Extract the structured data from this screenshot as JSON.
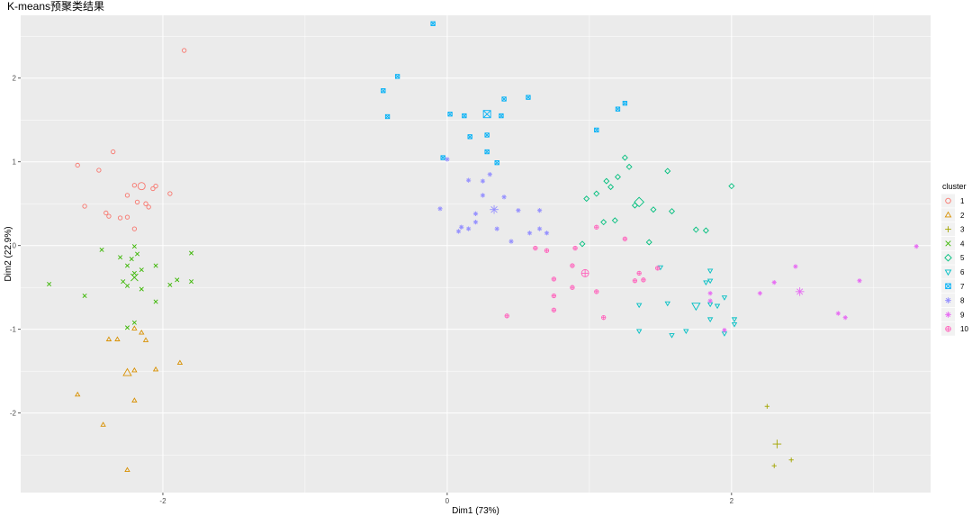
{
  "chart_data": {
    "type": "scatter",
    "title": "K-means预聚类结果",
    "xlabel": "Dim1 (73%)",
    "ylabel": "Dim2 (22.9%)",
    "xlim": [
      -3.0,
      3.4
    ],
    "ylim": [
      -2.95,
      2.75
    ],
    "x_ticks": [
      -2,
      0,
      2
    ],
    "y_ticks": [
      -2,
      -1,
      0,
      1,
      2
    ],
    "grid": true,
    "legend": {
      "title": "cluster",
      "position": "right"
    },
    "series": [
      {
        "name": "1",
        "color": "#F8766D",
        "shape": "circle",
        "centroid": [
          -2.15,
          0.71
        ],
        "points": [
          [
            -1.85,
            2.33
          ],
          [
            -2.6,
            0.96
          ],
          [
            -2.35,
            1.12
          ],
          [
            -2.45,
            0.9
          ],
          [
            -2.2,
            0.72
          ],
          [
            -2.05,
            0.71
          ],
          [
            -2.07,
            0.68
          ],
          [
            -1.95,
            0.62
          ],
          [
            -2.25,
            0.6
          ],
          [
            -2.18,
            0.52
          ],
          [
            -2.12,
            0.5
          ],
          [
            -2.1,
            0.46
          ],
          [
            -2.55,
            0.47
          ],
          [
            -2.4,
            0.39
          ],
          [
            -2.38,
            0.35
          ],
          [
            -2.3,
            0.33
          ],
          [
            -2.25,
            0.34
          ],
          [
            -2.2,
            0.2
          ]
        ]
      },
      {
        "name": "2",
        "color": "#D89000",
        "shape": "triangle",
        "centroid": [
          -2.25,
          -1.52
        ],
        "points": [
          [
            -2.2,
            -0.99
          ],
          [
            -2.15,
            -1.04
          ],
          [
            -2.38,
            -1.12
          ],
          [
            -2.32,
            -1.12
          ],
          [
            -2.12,
            -1.13
          ],
          [
            -2.05,
            -1.48
          ],
          [
            -2.2,
            -1.49
          ],
          [
            -1.88,
            -1.4
          ],
          [
            -2.2,
            -1.85
          ],
          [
            -2.6,
            -1.78
          ],
          [
            -2.42,
            -2.14
          ],
          [
            -2.25,
            -2.68
          ]
        ]
      },
      {
        "name": "3",
        "color": "#A3A500",
        "shape": "plus",
        "centroid": [
          2.32,
          -2.37
        ],
        "points": [
          [
            2.25,
            -1.92
          ],
          [
            2.42,
            -2.56
          ],
          [
            2.3,
            -2.63
          ]
        ]
      },
      {
        "name": "4",
        "color": "#39B600",
        "shape": "cross",
        "centroid": [
          -2.2,
          -0.38
        ],
        "points": [
          [
            -2.2,
            -0.01
          ],
          [
            -2.43,
            -0.05
          ],
          [
            -2.3,
            -0.14
          ],
          [
            -2.22,
            -0.16
          ],
          [
            -2.18,
            -0.1
          ],
          [
            -1.8,
            -0.09
          ],
          [
            -2.05,
            -0.24
          ],
          [
            -2.25,
            -0.24
          ],
          [
            -2.15,
            -0.29
          ],
          [
            -2.2,
            -0.33
          ],
          [
            -1.9,
            -0.41
          ],
          [
            -1.8,
            -0.43
          ],
          [
            -2.28,
            -0.43
          ],
          [
            -2.25,
            -0.48
          ],
          [
            -2.15,
            -0.52
          ],
          [
            -1.95,
            -0.47
          ],
          [
            -2.8,
            -0.46
          ],
          [
            -2.55,
            -0.6
          ],
          [
            -2.05,
            -0.67
          ],
          [
            -2.2,
            -0.92
          ],
          [
            -2.25,
            -0.98
          ]
        ]
      },
      {
        "name": "5",
        "color": "#00BF7D",
        "shape": "diamond",
        "centroid": [
          1.35,
          0.52
        ],
        "points": [
          [
            1.25,
            1.05
          ],
          [
            1.28,
            0.94
          ],
          [
            1.2,
            0.82
          ],
          [
            1.12,
            0.77
          ],
          [
            1.05,
            0.62
          ],
          [
            0.98,
            0.56
          ],
          [
            1.15,
            0.7
          ],
          [
            1.32,
            0.48
          ],
          [
            1.45,
            0.43
          ],
          [
            1.58,
            0.41
          ],
          [
            1.1,
            0.28
          ],
          [
            1.18,
            0.3
          ],
          [
            1.75,
            0.19
          ],
          [
            1.82,
            0.18
          ],
          [
            2.0,
            0.71
          ],
          [
            1.55,
            0.89
          ],
          [
            1.42,
            0.04
          ],
          [
            0.95,
            0.02
          ]
        ]
      },
      {
        "name": "6",
        "color": "#00BFC4",
        "shape": "triangle-down",
        "centroid": [
          1.75,
          -0.72
        ],
        "points": [
          [
            1.5,
            -0.26
          ],
          [
            1.85,
            -0.3
          ],
          [
            1.85,
            -0.42
          ],
          [
            1.82,
            -0.44
          ],
          [
            1.95,
            -0.62
          ],
          [
            1.85,
            -0.7
          ],
          [
            1.9,
            -0.72
          ],
          [
            1.35,
            -0.71
          ],
          [
            1.55,
            -0.69
          ],
          [
            2.02,
            -0.88
          ],
          [
            2.02,
            -0.94
          ],
          [
            1.95,
            -1.05
          ],
          [
            1.85,
            -0.88
          ],
          [
            1.35,
            -1.02
          ],
          [
            1.58,
            -1.07
          ],
          [
            1.68,
            -1.02
          ]
        ]
      },
      {
        "name": "7",
        "color": "#00B0F6",
        "shape": "square-cross",
        "centroid": [
          0.28,
          1.57
        ],
        "points": [
          [
            -0.1,
            2.65
          ],
          [
            -0.35,
            2.02
          ],
          [
            -0.45,
            1.85
          ],
          [
            -0.42,
            1.54
          ],
          [
            0.02,
            1.57
          ],
          [
            0.12,
            1.55
          ],
          [
            0.38,
            1.55
          ],
          [
            0.4,
            1.75
          ],
          [
            0.57,
            1.77
          ],
          [
            1.2,
            1.63
          ],
          [
            1.25,
            1.7
          ],
          [
            1.05,
            1.38
          ],
          [
            0.16,
            1.3
          ],
          [
            0.28,
            1.32
          ],
          [
            0.28,
            1.12
          ],
          [
            0.35,
            0.99
          ],
          [
            -0.03,
            1.05
          ]
        ]
      },
      {
        "name": "8",
        "color": "#9590FF",
        "shape": "asterisk",
        "centroid": [
          0.33,
          0.43
        ],
        "points": [
          [
            0.0,
            1.03
          ],
          [
            -0.05,
            0.44
          ],
          [
            0.15,
            0.2
          ],
          [
            0.08,
            0.17
          ],
          [
            0.1,
            0.22
          ],
          [
            0.15,
            0.78
          ],
          [
            0.25,
            0.77
          ],
          [
            0.3,
            0.85
          ],
          [
            0.2,
            0.38
          ],
          [
            0.2,
            0.28
          ],
          [
            0.25,
            0.6
          ],
          [
            0.35,
            0.2
          ],
          [
            0.4,
            0.58
          ],
          [
            0.45,
            0.05
          ],
          [
            0.5,
            0.42
          ],
          [
            0.58,
            0.15
          ],
          [
            0.65,
            0.2
          ],
          [
            0.7,
            0.15
          ],
          [
            0.65,
            0.42
          ]
        ]
      },
      {
        "name": "9",
        "color": "#E76BF3",
        "shape": "star",
        "centroid": [
          2.48,
          -0.55
        ],
        "points": [
          [
            3.3,
            -0.01
          ],
          [
            2.9,
            -0.42
          ],
          [
            2.45,
            -0.25
          ],
          [
            2.3,
            -0.44
          ],
          [
            2.2,
            -0.57
          ],
          [
            1.85,
            -0.57
          ],
          [
            1.85,
            -0.66
          ],
          [
            2.75,
            -0.81
          ],
          [
            2.8,
            -0.86
          ],
          [
            1.95,
            -1.01
          ]
        ]
      },
      {
        "name": "10",
        "color": "#FF62BC",
        "shape": "circle-plus",
        "centroid": [
          0.97,
          -0.33
        ],
        "points": [
          [
            0.62,
            -0.03
          ],
          [
            0.7,
            -0.06
          ],
          [
            0.9,
            -0.03
          ],
          [
            0.75,
            -0.4
          ],
          [
            0.75,
            -0.6
          ],
          [
            0.88,
            -0.5
          ],
          [
            0.88,
            -0.24
          ],
          [
            1.05,
            -0.55
          ],
          [
            1.05,
            0.22
          ],
          [
            1.25,
            0.08
          ],
          [
            1.35,
            -0.33
          ],
          [
            1.32,
            -0.42
          ],
          [
            1.38,
            -0.41
          ],
          [
            0.75,
            -0.77
          ],
          [
            0.42,
            -0.84
          ],
          [
            1.1,
            -0.86
          ],
          [
            1.48,
            -0.27
          ]
        ]
      }
    ]
  }
}
